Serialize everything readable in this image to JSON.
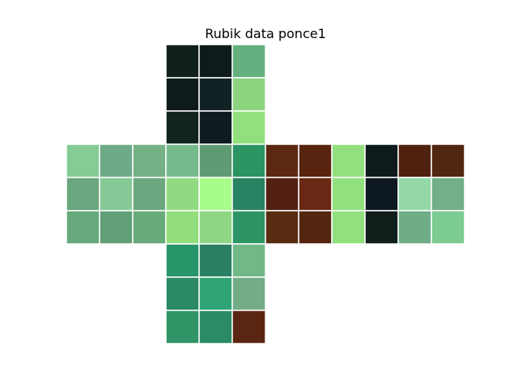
{
  "chart_data": {
    "type": "heatmap",
    "title": "Rubik data ponce1",
    "layout": "cube-net-cross",
    "faces": [
      {
        "face": "up",
        "row": 0,
        "col": 1,
        "colors": [
          [
            "#12201c",
            "#0e1a1b",
            "#66b07f"
          ],
          [
            "#0e1a1b",
            "#102223",
            "#8dd47f"
          ],
          [
            "#122420",
            "#0e1b20",
            "#91e07d"
          ]
        ]
      },
      {
        "face": "left",
        "row": 1,
        "col": 0,
        "colors": [
          [
            "#84cc94",
            "#6faa88",
            "#74b185"
          ],
          [
            "#6aa67e",
            "#86c997",
            "#6ca77f"
          ],
          [
            "#66a97a",
            "#619f76",
            "#68aa79"
          ]
        ]
      },
      {
        "face": "front",
        "row": 1,
        "col": 1,
        "colors": [
          [
            "#75ba8a",
            "#5e9a72",
            "#2a9463"
          ],
          [
            "#92da81",
            "#a8fc8a",
            "#298362"
          ],
          [
            "#92de7d",
            "#8ed584",
            "#2c9465"
          ]
        ]
      },
      {
        "face": "right",
        "row": 1,
        "col": 2,
        "colors": [
          [
            "#5c2812",
            "#58230f",
            "#91e07d"
          ],
          [
            "#531f10",
            "#692813",
            "#91e07d"
          ],
          [
            "#582c11",
            "#55260f",
            "#91e07d"
          ]
        ]
      },
      {
        "face": "back",
        "row": 1,
        "col": 3,
        "colors": [
          [
            "#0e1a1b",
            "#50210f",
            "#512710"
          ],
          [
            "#0e1822",
            "#93d8a5",
            "#72b087"
          ],
          [
            "#0f1d1b",
            "#6fad86",
            "#7ccb92"
          ]
        ]
      },
      {
        "face": "down",
        "row": 2,
        "col": 1,
        "colors": [
          [
            "#29966a",
            "#2b7f63",
            "#70b886"
          ],
          [
            "#2b8964",
            "#2fa374",
            "#73ac86"
          ],
          [
            "#2f9466",
            "#2a8b64",
            "#5a2612"
          ]
        ]
      }
    ]
  }
}
